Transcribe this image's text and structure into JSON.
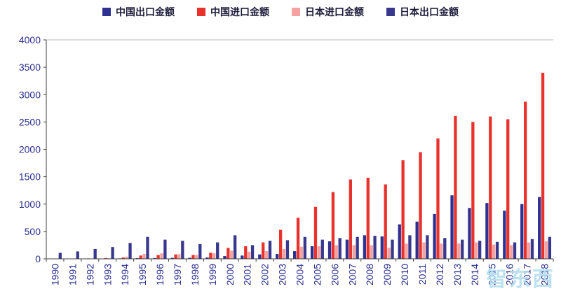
{
  "watermark": "智东西",
  "chart_data": {
    "type": "bar",
    "title": "",
    "xlabel": "",
    "ylabel": "",
    "ylim": [
      0,
      4000
    ],
    "ytick_step": 500,
    "grid": false,
    "legend_position": "top",
    "axis_text_color": "#2b2f8e",
    "categories": [
      "1990",
      "1991",
      "1992",
      "1993",
      "1994",
      "1995",
      "1996",
      "1997",
      "1998",
      "1999",
      "2000",
      "2001",
      "2002",
      "2003",
      "2004",
      "2005",
      "2006",
      "2007",
      "2008",
      "2009",
      "2010",
      "2011",
      "2012",
      "2013",
      "2014",
      "2015",
      "2016",
      "2017",
      "2018"
    ],
    "series": [
      {
        "name": "中国出口金额",
        "color": "#2e3192",
        "values": [
          2,
          3,
          4,
          5,
          8,
          12,
          15,
          18,
          20,
          25,
          50,
          60,
          80,
          90,
          140,
          230,
          320,
          350,
          430,
          410,
          630,
          680,
          820,
          1160,
          930,
          1020,
          880,
          1000,
          1130
        ]
      },
      {
        "name": "中国进口金额",
        "color": "#e8322b",
        "values": [
          3,
          4,
          8,
          15,
          25,
          60,
          70,
          80,
          70,
          110,
          200,
          230,
          300,
          530,
          750,
          950,
          1220,
          1450,
          1480,
          1360,
          1800,
          1950,
          2200,
          2610,
          2500,
          2600,
          2550,
          2870,
          3400
        ]
      },
      {
        "name": "日本进口金额",
        "color": "#f4a3a2",
        "values": [
          3,
          4,
          6,
          10,
          40,
          90,
          100,
          85,
          70,
          100,
          150,
          130,
          140,
          180,
          220,
          230,
          250,
          250,
          250,
          200,
          280,
          300,
          280,
          280,
          300,
          260,
          250,
          300,
          320
        ]
      },
      {
        "name": "日本出口金额",
        "color": "#38388f",
        "values": [
          110,
          135,
          180,
          215,
          290,
          400,
          350,
          330,
          270,
          300,
          430,
          250,
          330,
          340,
          400,
          350,
          380,
          400,
          420,
          350,
          430,
          430,
          380,
          350,
          330,
          310,
          300,
          360,
          400
        ]
      }
    ]
  }
}
